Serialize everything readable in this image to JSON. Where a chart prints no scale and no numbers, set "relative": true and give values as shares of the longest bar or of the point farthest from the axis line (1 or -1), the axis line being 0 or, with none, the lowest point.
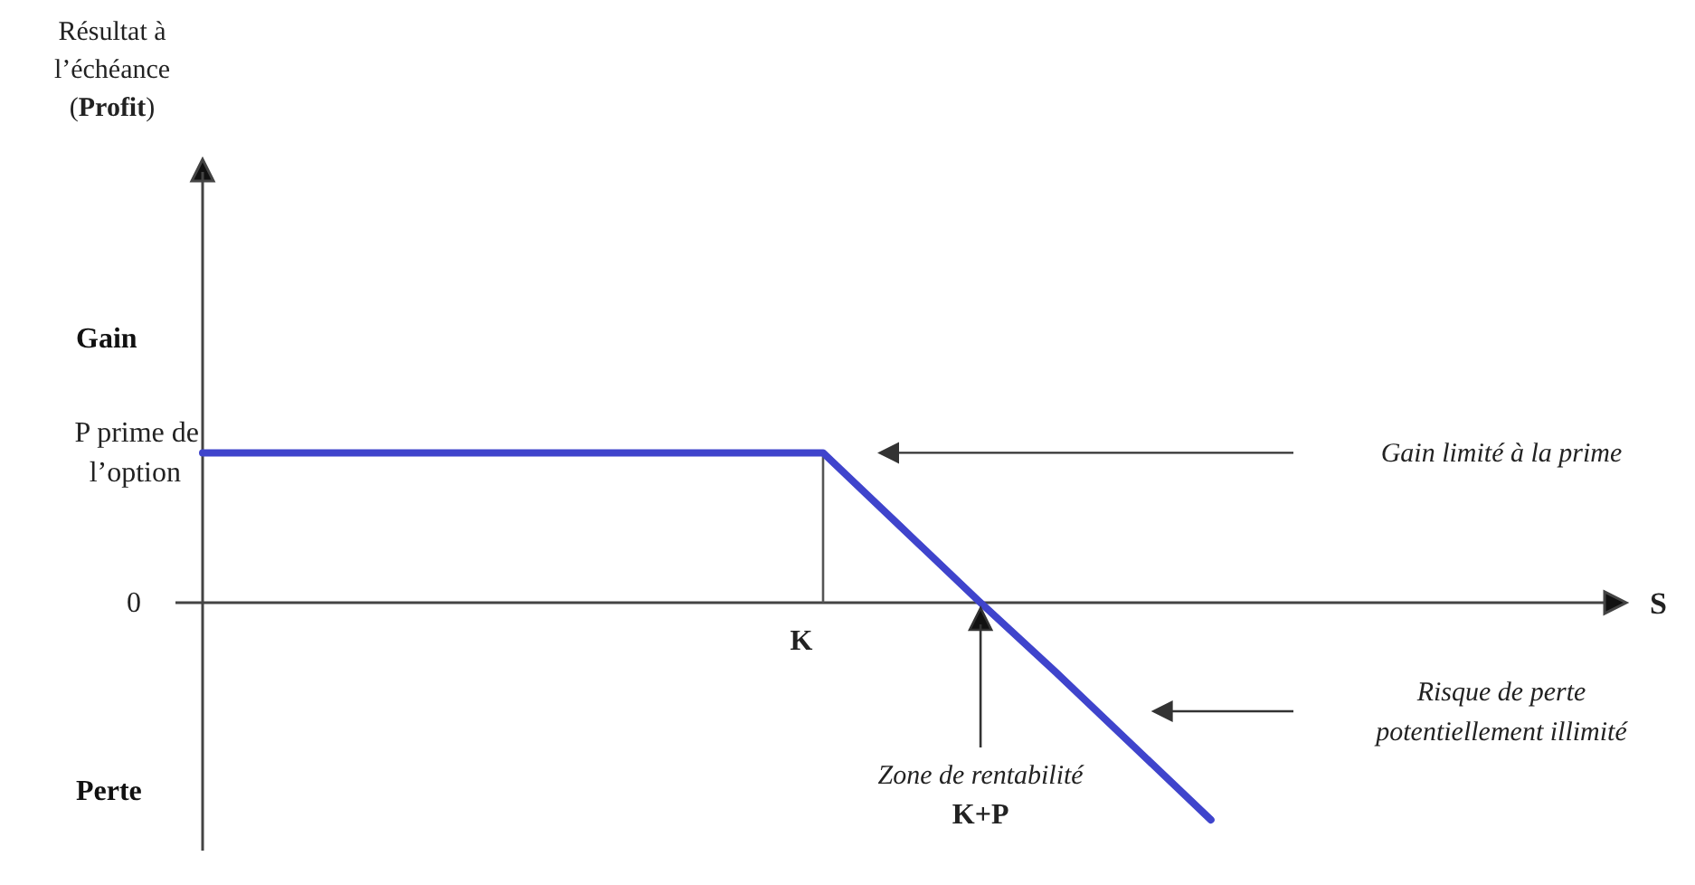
{
  "chart_data": {
    "type": "line",
    "relative": true,
    "categories": [
      null,
      null,
      null,
      null,
      null,
      null,
      null,
      null,
      null,
      null,
      null,
      null,
      null,
      null
    ],
    "series": [
      {
        "color": "#3f44cc",
        "values": [
          0.69,
          0.69,
          0.69,
          0.69,
          0.69,
          0.69,
          0.69,
          0.69,
          0.69,
          0.35,
          0.01,
          -0.32,
          -0.66,
          -1
        ]
      }
    ],
    "annotations": [
      "Gain",
      "P prime de\nl’option",
      "0",
      "Perte",
      "Gain limité à la prime",
      "Risque de perte\npotentiellement illimité",
      "Zone de rentabilité\nK+P",
      "K",
      "S",
      "Résultat à\nl’échéance\n(Profit)"
    ]
  }
}
